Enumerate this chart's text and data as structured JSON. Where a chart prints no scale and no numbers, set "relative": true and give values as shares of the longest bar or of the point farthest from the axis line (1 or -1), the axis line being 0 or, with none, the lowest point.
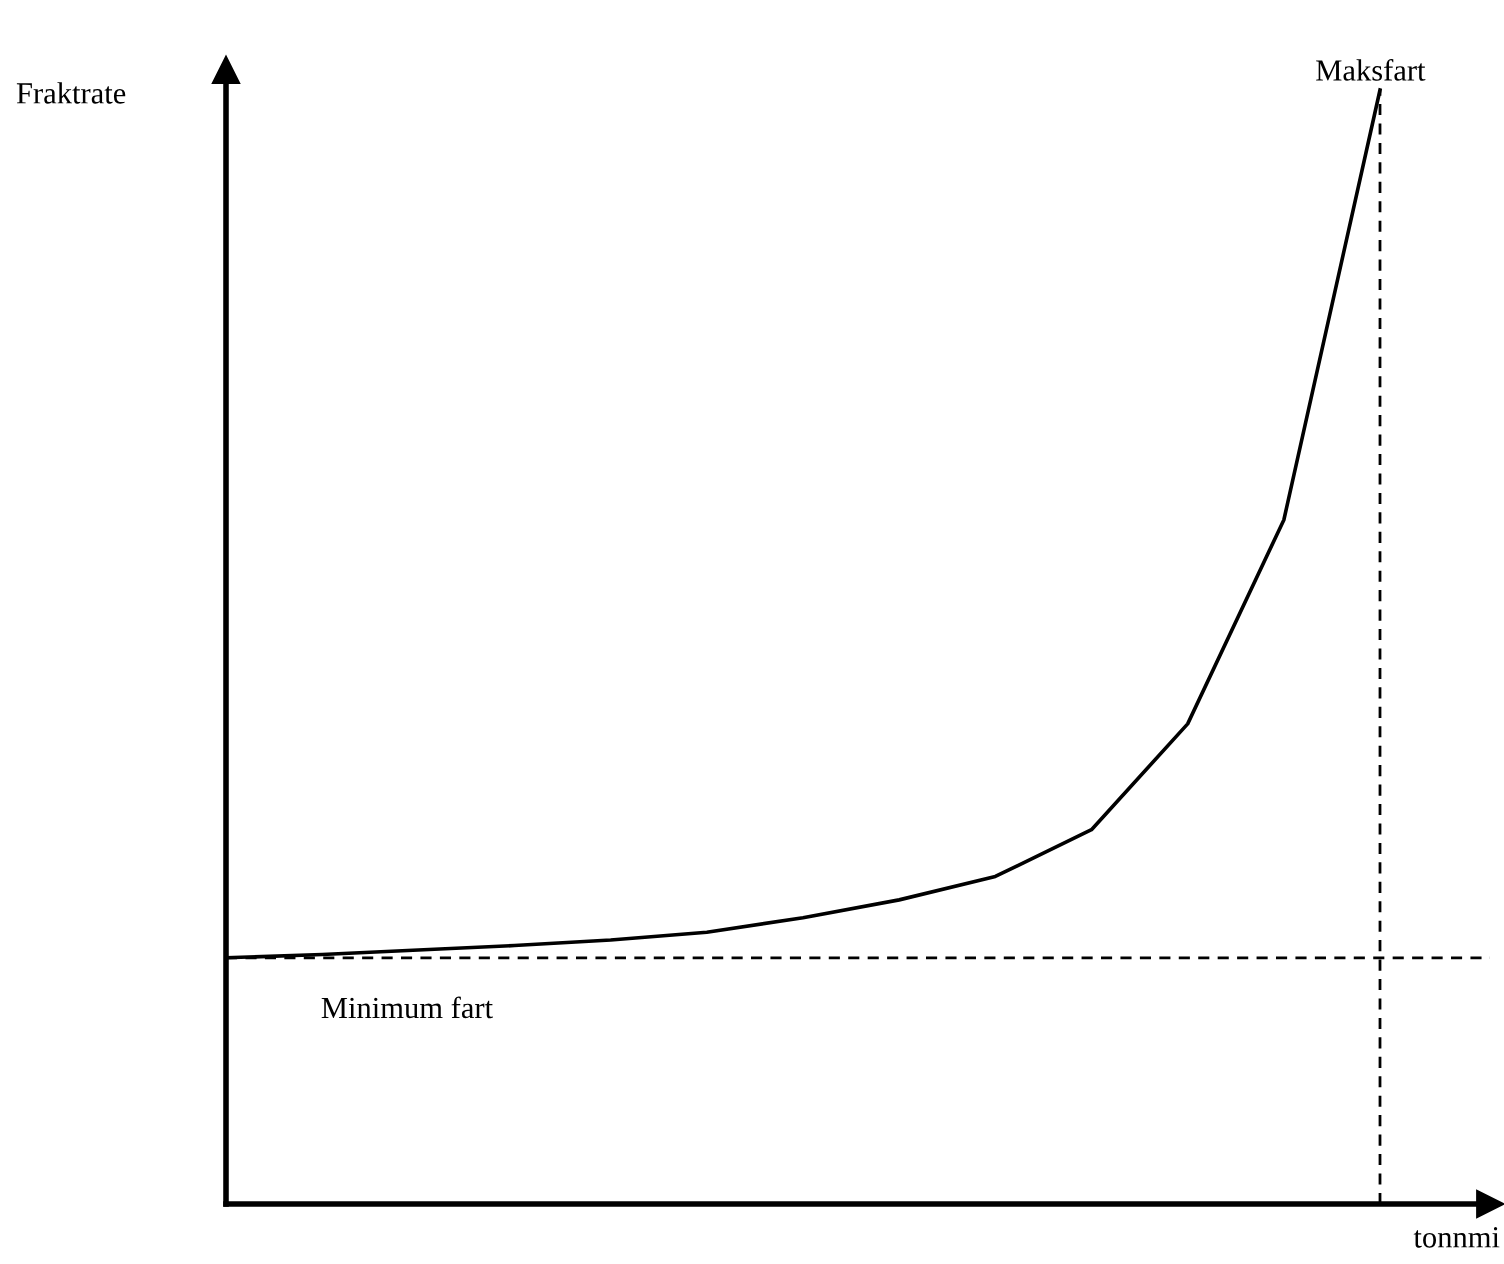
{
  "chart_data": {
    "type": "line",
    "relative": true,
    "xlabel": "tonnmi",
    "ylabel": "Fraktrate",
    "marker": "none",
    "line_style": "solid",
    "categories": [
      null,
      null,
      null,
      null,
      null,
      null,
      null,
      null,
      null,
      null,
      null,
      null,
      null
    ],
    "series": [
      {
        "color": "#000000",
        "values": [
          0.221,
          0.224,
          0.228,
          0.232,
          0.237,
          0.244,
          0.257,
          0.273,
          0.294,
          0.336,
          0.431,
          0.614,
          1.0
        ]
      }
    ],
    "ref_lines": [
      {
        "axis": "y",
        "value": 0.221,
        "label": "Minimum fart",
        "color": "#000000",
        "line_style": "dashed"
      }
    ],
    "annotations": [
      "Maksfart"
    ]
  }
}
